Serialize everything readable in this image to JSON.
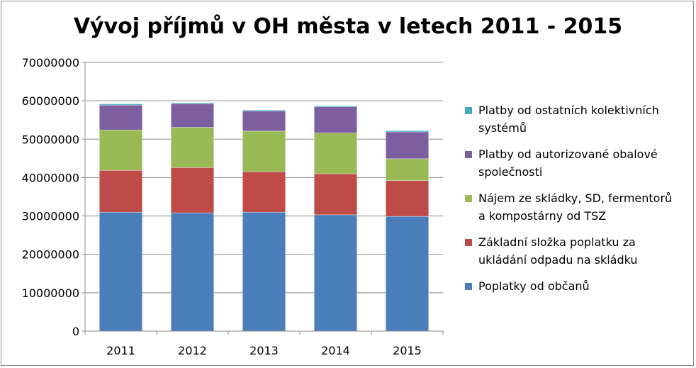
{
  "chart_data": {
    "type": "bar",
    "stacked": true,
    "title": "Vývoj příjmů v OH města v letech 2011 - 2015",
    "categories": [
      "2011",
      "2012",
      "2013",
      "2014",
      "2015"
    ],
    "ylim": [
      0,
      70000000
    ],
    "yticks": [
      "0",
      "10000000",
      "20000000",
      "30000000",
      "40000000",
      "50000000",
      "60000000",
      "70000000"
    ],
    "grid": true,
    "legend_position": "right",
    "series": [
      {
        "name": "Poplatky od občanů",
        "color": "#4a7ebb",
        "values": [
          31000000,
          30800000,
          31000000,
          30300000,
          29900000
        ]
      },
      {
        "name": "Základní složka poplatku za ukládání odpadu na skládku",
        "color": "#be4b48",
        "values": [
          10900000,
          11800000,
          10500000,
          10700000,
          9300000
        ]
      },
      {
        "name": "Nájem ze skládky, SD, fermentorů a kompostárny od TSZ",
        "color": "#98b954",
        "values": [
          10500000,
          10500000,
          10600000,
          10600000,
          5700000
        ]
      },
      {
        "name": "Platby od autorizované obalové společnosti",
        "color": "#7d5fa0",
        "values": [
          6500000,
          6100000,
          5200000,
          6800000,
          7000000
        ]
      },
      {
        "name": "Platby od ostatních kolektivních systémů",
        "color": "#46aac5",
        "values": [
          300000,
          300000,
          300000,
          300000,
          300000
        ]
      }
    ]
  },
  "legend": {
    "items": [
      {
        "label": "Platby od ostatních kolektivních\nsystémů",
        "color": "#46aac5"
      },
      {
        "label": "Platby od autorizované obalové\nspolečnosti",
        "color": "#7d5fa0"
      },
      {
        "label": "Nájem ze skládky, SD, fermentorů\na kompostárny od TSZ",
        "color": "#98b954"
      },
      {
        "label": "Základní složka poplatku za\nukládání odpadu na skládku",
        "color": "#be4b48"
      },
      {
        "label": "Poplatky od občanů",
        "color": "#4a7ebb"
      }
    ]
  }
}
